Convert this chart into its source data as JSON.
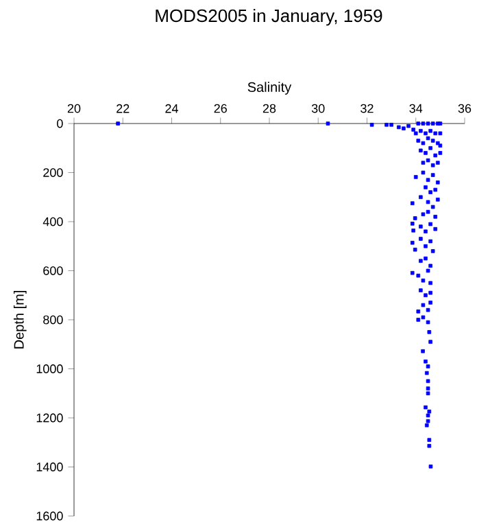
{
  "chart_data": {
    "type": "scatter",
    "title": "MODS2005 in January, 1959",
    "xlabel": "Salinity",
    "ylabel": "Depth [m]",
    "xlim": [
      20,
      36
    ],
    "xticks": [
      20,
      22,
      24,
      26,
      28,
      30,
      32,
      34,
      36
    ],
    "ylim": [
      1600,
      0
    ],
    "yticks": [
      0,
      200,
      400,
      600,
      800,
      1000,
      1200,
      1400,
      1600
    ],
    "marker": "square",
    "series": [
      {
        "color": "#0000ff",
        "x": [
          21.8,
          30.4,
          32.2,
          32.8,
          33.0,
          33.3,
          33.5,
          33.7,
          33.9,
          34.1,
          34.3,
          34.5,
          34.7,
          34.9,
          35.0,
          34.0,
          34.2,
          34.4,
          34.6,
          34.8,
          35.0,
          34.1,
          34.3,
          34.5,
          34.7,
          34.9,
          35.0,
          34.2,
          34.4,
          34.6,
          34.8,
          35.0,
          34.3,
          34.5,
          34.7,
          34.9,
          34.0,
          34.3,
          34.5,
          34.7,
          34.9,
          34.4,
          34.6,
          34.8,
          33.86,
          34.2,
          34.5,
          34.7,
          34.9,
          33.97,
          34.3,
          34.5,
          34.8,
          33.86,
          33.9,
          34.2,
          34.4,
          34.6,
          34.8,
          33.86,
          33.97,
          34.2,
          34.4,
          34.6,
          34.7,
          34.2,
          34.4,
          34.6,
          33.86,
          34.1,
          34.3,
          34.5,
          34.6,
          34.2,
          34.4,
          34.6,
          34.1,
          34.3,
          34.5,
          34.6,
          34.1,
          34.3,
          34.5,
          34.55,
          34.6,
          34.29,
          34.4,
          34.5,
          34.45,
          34.5,
          34.5,
          34.5,
          34.4,
          34.55,
          34.5,
          34.5,
          34.45,
          34.55,
          34.55,
          34.61
        ],
        "values": [
          0,
          0,
          5,
          5,
          5,
          15,
          20,
          10,
          25,
          0,
          0,
          0,
          0,
          0,
          0,
          40,
          30,
          40,
          30,
          40,
          40,
          70,
          80,
          60,
          70,
          80,
          90,
          110,
          120,
          100,
          130,
          120,
          160,
          150,
          170,
          160,
          218,
          200,
          230,
          210,
          240,
          260,
          280,
          270,
          325,
          300,
          320,
          340,
          310,
          386,
          370,
          360,
          380,
          408,
          436,
          420,
          440,
          410,
          430,
          486,
          514,
          470,
          500,
          480,
          520,
          560,
          550,
          580,
          609,
          620,
          640,
          600,
          650,
          680,
          700,
          690,
          766,
          740,
          760,
          730,
          800,
          790,
          810,
          850,
          890,
          928,
          970,
          990,
          1017,
          1050,
          1080,
          1100,
          1157,
          1174,
          1190,
          1213,
          1230,
          1290,
          1314,
          1398
        ]
      }
    ]
  }
}
